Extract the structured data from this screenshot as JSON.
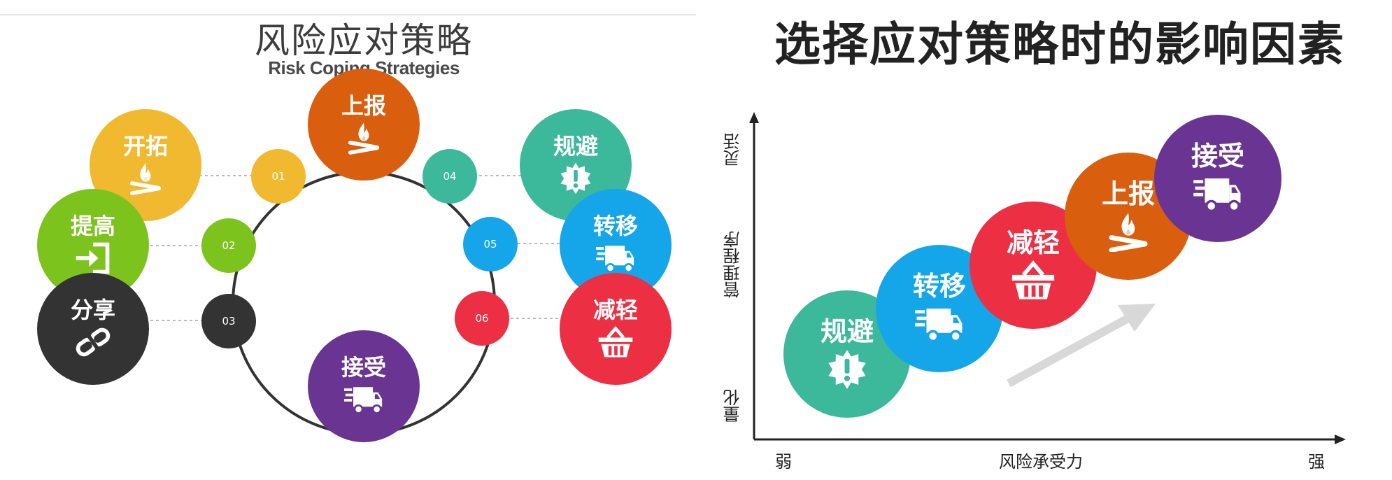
{
  "left": {
    "title": "风险应对策略",
    "subtitle": "Risk Coping Strategies",
    "ring_labels": [
      "01",
      "02",
      "03",
      "04",
      "05",
      "06"
    ],
    "strategies": [
      {
        "label": "开拓",
        "icon": "campfire-icon",
        "color": "#f0b92f"
      },
      {
        "label": "提高",
        "icon": "login-arrow-icon",
        "color": "#7dc31e"
      },
      {
        "label": "分享",
        "icon": "link-icon",
        "color": "#333333"
      },
      {
        "label": "上报",
        "icon": "campfire-icon",
        "color": "#d95e0e"
      },
      {
        "label": "规避",
        "icon": "alert-badge-icon",
        "color": "#3cb89b"
      },
      {
        "label": "转移",
        "icon": "delivery-truck-icon",
        "color": "#14a6e9"
      },
      {
        "label": "减轻",
        "icon": "basket-icon",
        "color": "#ec2f42"
      },
      {
        "label": "接受",
        "icon": "delivery-truck-icon",
        "color": "#6a3592"
      }
    ]
  },
  "right": {
    "title": "选择应对策略时的影响因素",
    "y_axis": {
      "top": "灵活",
      "middle": "管理程序",
      "bottom": "量化"
    },
    "x_axis": {
      "left": "弱",
      "middle": "风险承受力",
      "right": "强"
    },
    "strategies": [
      {
        "label": "规避",
        "icon": "alert-badge-icon",
        "color": "#3cb89b"
      },
      {
        "label": "转移",
        "icon": "delivery-truck-icon",
        "color": "#14a6e9"
      },
      {
        "label": "减轻",
        "icon": "basket-icon",
        "color": "#ec2f42"
      },
      {
        "label": "上报",
        "icon": "campfire-icon",
        "color": "#d95e0e"
      },
      {
        "label": "接受",
        "icon": "delivery-truck-icon",
        "color": "#6a3592"
      }
    ]
  }
}
